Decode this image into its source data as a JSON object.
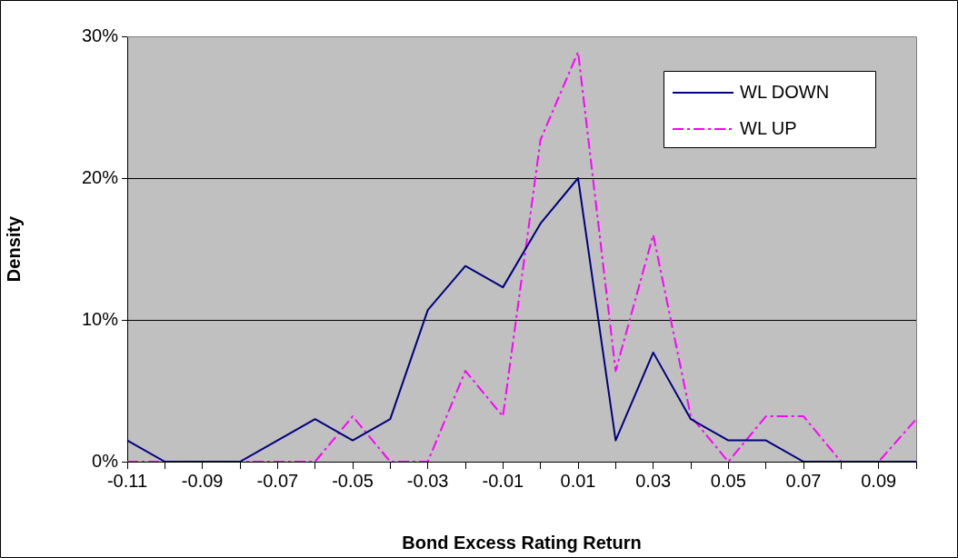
{
  "chart_data": {
    "type": "line",
    "xlabel": "Bond Excess Rating Return",
    "ylabel": "Density",
    "categories": [
      "-0.11",
      null,
      "-0.09",
      null,
      "-0.07",
      null,
      "-0.05",
      null,
      "-0.03",
      null,
      "-0.01",
      null,
      "0.01",
      null,
      "0.03",
      null,
      "0.05",
      null,
      "0.07",
      null,
      "0.09",
      null
    ],
    "series": [
      {
        "name": "WL DOWN",
        "color": "#000080",
        "line_style": "solid",
        "values": [
          1.5,
          0,
          0,
          0,
          1.5,
          3.0,
          1.5,
          3.0,
          10.7,
          13.8,
          12.3,
          16.8,
          20,
          1.5,
          7.7,
          3.0,
          1.5,
          1.5,
          0,
          0,
          0,
          0
        ]
      },
      {
        "name": "WL UP",
        "color": "#ff00ff",
        "line_style": "dashdot",
        "values": [
          0,
          0,
          0,
          0,
          0,
          0,
          3.2,
          0,
          0,
          6.4,
          3.2,
          22.7,
          28.9,
          6.4,
          16.0,
          3.2,
          0,
          3.2,
          3.2,
          0,
          0,
          3.0
        ]
      }
    ],
    "ylim": [
      0,
      30
    ],
    "yticks": [
      {
        "value": 0,
        "label": "0%"
      },
      {
        "value": 10,
        "label": "10%"
      },
      {
        "value": 20,
        "label": "20%"
      },
      {
        "value": 30,
        "label": "30%"
      }
    ],
    "grid": "y",
    "legend": "top right",
    "marker": "none"
  }
}
